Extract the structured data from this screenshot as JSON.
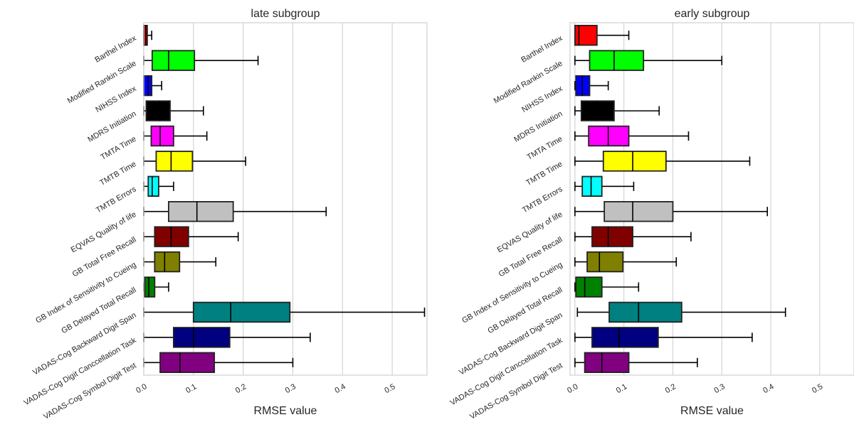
{
  "chart_data": [
    {
      "type": "box",
      "orientation": "horizontal",
      "title": "late subgroup",
      "xlabel": "RMSE value",
      "ylabel": "",
      "xlim": [
        0.0,
        0.57
      ],
      "xticks": [
        0.0,
        0.1,
        0.2,
        0.3,
        0.4,
        0.5
      ],
      "xtick_labels": [
        "0.0",
        "0.1",
        "0.2",
        "0.3",
        "0.4",
        "0.5"
      ],
      "grid": "vertical",
      "categories": [
        "Barthel Index",
        "Modified Rankin Scale",
        "NIHSS Index",
        "MDRS Initiation",
        "TMTA Time",
        "TMTB Time",
        "TMTB Errors",
        "EQVAS Quality of life",
        "GB Total Free Recall",
        "GB Index of Sensitivity to Cueing",
        "GB Delayed Total Recall",
        "VADAS-Cog Backward Digit Span",
        "VADAS-Cog Digit Canccellation Task",
        "VADAS-Cog Symbol Digit Test"
      ],
      "boxes": [
        {
          "whislo": 0.0,
          "q1": 0.0,
          "med": 0.004,
          "q3": 0.007,
          "whishi": 0.016,
          "color": "#ff0000"
        },
        {
          "whislo": 0.0,
          "q1": 0.017,
          "med": 0.05,
          "q3": 0.102,
          "whishi": 0.23,
          "color": "#00ff00"
        },
        {
          "whislo": 0.0,
          "q1": 0.0,
          "med": 0.009,
          "q3": 0.016,
          "whishi": 0.036,
          "color": "#0000ff"
        },
        {
          "whislo": 0.0,
          "q1": 0.005,
          "med": 0.032,
          "q3": 0.053,
          "whishi": 0.12,
          "color": "#000000"
        },
        {
          "whislo": 0.0,
          "q1": 0.015,
          "med": 0.033,
          "q3": 0.06,
          "whishi": 0.127,
          "color": "#ff00ff"
        },
        {
          "whislo": 0.0,
          "q1": 0.025,
          "med": 0.055,
          "q3": 0.098,
          "whishi": 0.205,
          "color": "#ffff00"
        },
        {
          "whislo": 0.0,
          "q1": 0.009,
          "med": 0.017,
          "q3": 0.03,
          "whishi": 0.06,
          "color": "#00ffff"
        },
        {
          "whislo": 0.0,
          "q1": 0.05,
          "med": 0.107,
          "q3": 0.18,
          "whishi": 0.367,
          "color": "#c0c0c0"
        },
        {
          "whislo": 0.0,
          "q1": 0.022,
          "med": 0.055,
          "q3": 0.09,
          "whishi": 0.19,
          "color": "#800000"
        },
        {
          "whislo": 0.0,
          "q1": 0.022,
          "med": 0.042,
          "q3": 0.072,
          "whishi": 0.145,
          "color": "#808000"
        },
        {
          "whislo": 0.0,
          "q1": 0.002,
          "med": 0.01,
          "q3": 0.022,
          "whishi": 0.05,
          "color": "#008000"
        },
        {
          "whislo": 0.0,
          "q1": 0.1,
          "med": 0.175,
          "q3": 0.294,
          "whishi": 0.565,
          "color": "#008080"
        },
        {
          "whislo": 0.0,
          "q1": 0.06,
          "med": 0.1,
          "q3": 0.173,
          "whishi": 0.335,
          "color": "#000080"
        },
        {
          "whislo": 0.0,
          "q1": 0.033,
          "med": 0.073,
          "q3": 0.142,
          "whishi": 0.3,
          "color": "#800080"
        }
      ]
    },
    {
      "type": "box",
      "orientation": "horizontal",
      "title": "early subgroup",
      "xlabel": "RMSE value",
      "ylabel": "",
      "xlim": [
        -0.01,
        0.57
      ],
      "xticks": [
        0.0,
        0.1,
        0.2,
        0.3,
        0.4,
        0.5
      ],
      "xtick_labels": [
        "0.0",
        "0.1",
        "0.2",
        "0.3",
        "0.4",
        "0.5"
      ],
      "grid": "vertical",
      "categories": [
        "Barthel Index",
        "Modified Rankin Scale",
        "NIHSS Index",
        "MDRS Initiation",
        "TMTA Time",
        "TMTB Time",
        "TMTB Errors",
        "EQVAS Quality of life",
        "GB Total Free Recall",
        "GB Index of Sensitivity to Cueing",
        "GB Delayed Total Recall",
        "VADAS-Cog Backward Digit Span",
        "VADAS-Cog Digit Canccellation Task",
        "VADAS-Cog Symbol Digit Test"
      ],
      "boxes": [
        {
          "whislo": 0.0,
          "q1": 0.0,
          "med": 0.008,
          "q3": 0.045,
          "whishi": 0.11,
          "color": "#ff0000"
        },
        {
          "whislo": 0.0,
          "q1": 0.03,
          "med": 0.08,
          "q3": 0.14,
          "whishi": 0.3,
          "color": "#00ff00"
        },
        {
          "whislo": 0.0,
          "q1": 0.002,
          "med": 0.015,
          "q3": 0.03,
          "whishi": 0.068,
          "color": "#0000ff"
        },
        {
          "whislo": 0.0,
          "q1": 0.013,
          "med": 0.045,
          "q3": 0.08,
          "whishi": 0.172,
          "color": "#000000"
        },
        {
          "whislo": 0.0,
          "q1": 0.028,
          "med": 0.068,
          "q3": 0.11,
          "whishi": 0.232,
          "color": "#ff00ff"
        },
        {
          "whislo": 0.0,
          "q1": 0.058,
          "med": 0.118,
          "q3": 0.186,
          "whishi": 0.357,
          "color": "#ffff00"
        },
        {
          "whislo": 0.0,
          "q1": 0.015,
          "med": 0.033,
          "q3": 0.055,
          "whishi": 0.12,
          "color": "#00ffff"
        },
        {
          "whislo": 0.0,
          "q1": 0.06,
          "med": 0.118,
          "q3": 0.2,
          "whishi": 0.393,
          "color": "#c0c0c0"
        },
        {
          "whislo": 0.0,
          "q1": 0.035,
          "med": 0.068,
          "q3": 0.118,
          "whishi": 0.237,
          "color": "#800000"
        },
        {
          "whislo": 0.0,
          "q1": 0.025,
          "med": 0.05,
          "q3": 0.098,
          "whishi": 0.207,
          "color": "#808000"
        },
        {
          "whislo": 0.0,
          "q1": 0.002,
          "med": 0.02,
          "q3": 0.055,
          "whishi": 0.13,
          "color": "#008000"
        },
        {
          "whislo": 0.005,
          "q1": 0.07,
          "med": 0.13,
          "q3": 0.218,
          "whishi": 0.43,
          "color": "#008080"
        },
        {
          "whislo": 0.0,
          "q1": 0.035,
          "med": 0.09,
          "q3": 0.17,
          "whishi": 0.362,
          "color": "#000080"
        },
        {
          "whislo": 0.0,
          "q1": 0.02,
          "med": 0.055,
          "q3": 0.11,
          "whishi": 0.25,
          "color": "#800080"
        }
      ]
    }
  ]
}
